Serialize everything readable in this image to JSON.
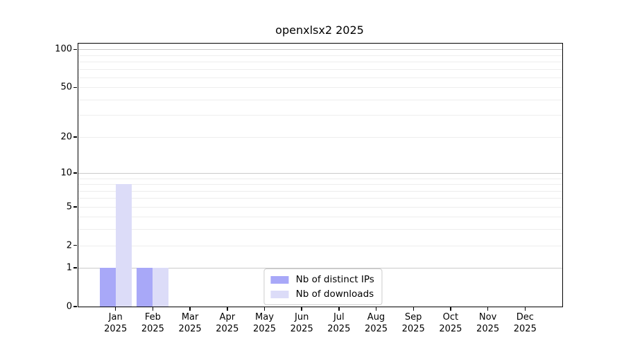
{
  "chart_data": {
    "type": "bar",
    "title": "openxlsx2 2025",
    "categories": [
      "Jan",
      "Feb",
      "Mar",
      "Apr",
      "May",
      "Jun",
      "Jul",
      "Aug",
      "Sep",
      "Oct",
      "Nov",
      "Dec"
    ],
    "category_year": "2025",
    "series": [
      {
        "name": "Nb of distinct IPs",
        "color": "#a8a8f8",
        "values": [
          1,
          1,
          0,
          0,
          0,
          0,
          0,
          0,
          0,
          0,
          0,
          0
        ]
      },
      {
        "name": "Nb of downloads",
        "color": "#dcdcf8",
        "values": [
          8,
          1,
          0,
          0,
          0,
          0,
          0,
          0,
          0,
          0,
          0,
          0
        ]
      }
    ],
    "yaxis": {
      "scale": "log1p",
      "ticks": [
        0,
        1,
        2,
        5,
        10,
        20,
        50,
        100
      ],
      "max": 111,
      "major_gridlines": [
        1,
        10,
        100
      ],
      "minor_gridlines": [
        2,
        3,
        4,
        5,
        6,
        7,
        8,
        9,
        20,
        30,
        40,
        50,
        60,
        70,
        80,
        90
      ]
    },
    "xlabel": "",
    "ylabel": "",
    "legend_position": "bottom-center",
    "grid": true
  }
}
